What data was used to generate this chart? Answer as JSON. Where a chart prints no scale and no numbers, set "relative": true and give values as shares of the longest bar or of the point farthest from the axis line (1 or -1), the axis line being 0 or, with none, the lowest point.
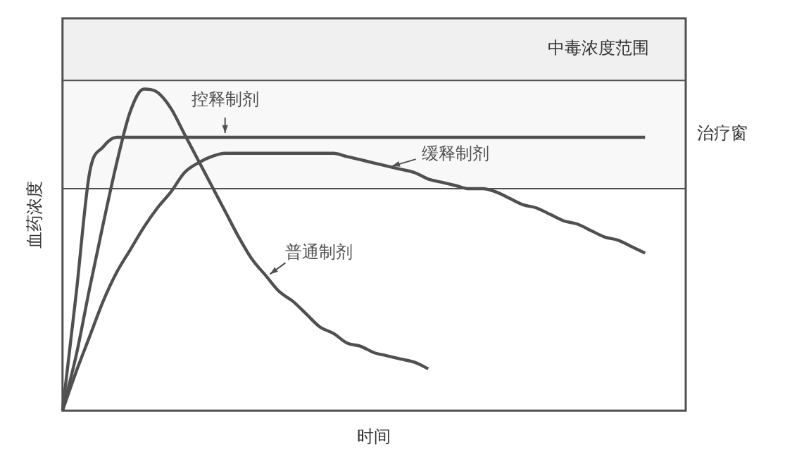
{
  "chart_data": {
    "type": "line",
    "relative": true,
    "xlabel": "时间",
    "ylabel": "血药浓度",
    "marker": "none",
    "categories": [
      null,
      null,
      null,
      null,
      null,
      null,
      null,
      null,
      null,
      null,
      null,
      null,
      null,
      null,
      null,
      null,
      null,
      null,
      null,
      null,
      null,
      null,
      null,
      null,
      null,
      null,
      null,
      null,
      null,
      null,
      null,
      null,
      null,
      null,
      null,
      null,
      null,
      null,
      null,
      null,
      null,
      null,
      null,
      null,
      null,
      null,
      null
    ],
    "series": [
      {
        "name": "控释制剂",
        "color": "#505050",
        "values": [
          0,
          0.36,
          0.74,
          0.82,
          0.85,
          0.85,
          0.85,
          0.85,
          0.85,
          0.85,
          0.85,
          0.85,
          0.85,
          0.85,
          0.85,
          0.85,
          0.85,
          0.85,
          0.85,
          0.85,
          0.85,
          0.85,
          0.85,
          0.85,
          0.85,
          0.85,
          0.85,
          0.85,
          0.85,
          0.85,
          0.85,
          0.85,
          0.85,
          0.85,
          0.85,
          0.85,
          0.85,
          0.85,
          0.85,
          0.85,
          0.85,
          0.85,
          0.85,
          0.85,
          null,
          null,
          null
        ]
      },
      {
        "name": "缓释制剂",
        "color": "#505050",
        "values": [
          0,
          0.12,
          0.23,
          0.34,
          0.43,
          0.5,
          0.57,
          0.63,
          0.68,
          0.74,
          0.77,
          0.79,
          0.8,
          0.8,
          0.8,
          0.8,
          0.8,
          0.8,
          0.8,
          0.8,
          0.8,
          0.79,
          0.78,
          0.77,
          0.76,
          0.75,
          0.74,
          0.72,
          0.71,
          0.7,
          0.69,
          0.69,
          0.68,
          0.66,
          0.64,
          0.63,
          0.61,
          0.59,
          0.58,
          0.56,
          0.54,
          0.53,
          0.51,
          0.49,
          null,
          null,
          null
        ]
      },
      {
        "name": "普通制剂",
        "color": "#505050",
        "values": [
          0,
          0.17,
          0.38,
          0.58,
          0.77,
          0.93,
          1,
          0.99,
          0.94,
          0.86,
          0.78,
          0.7,
          0.62,
          0.54,
          0.47,
          0.42,
          0.37,
          0.34,
          0.3,
          0.26,
          0.24,
          0.21,
          0.2,
          0.18,
          0.17,
          0.16,
          0.15,
          0.13,
          null,
          null,
          null,
          null,
          null,
          null,
          null,
          null,
          null,
          null,
          null,
          null,
          null,
          null,
          null,
          null,
          null,
          null,
          null
        ]
      }
    ],
    "ref_lines": [
      {
        "axis": "y",
        "value": 1.027,
        "color": "#505050"
      },
      {
        "axis": "y",
        "value": 0.69,
        "color": "#505050"
      }
    ],
    "bands": [
      {
        "axis": "y",
        "from": 1.027,
        "to": 1.22,
        "label": "中毒浓度范围",
        "color": "#f0f0f0"
      },
      {
        "axis": "y",
        "from": 0.69,
        "to": 1.027,
        "label": "治疗窗",
        "color": "#f8f8f8"
      }
    ]
  }
}
